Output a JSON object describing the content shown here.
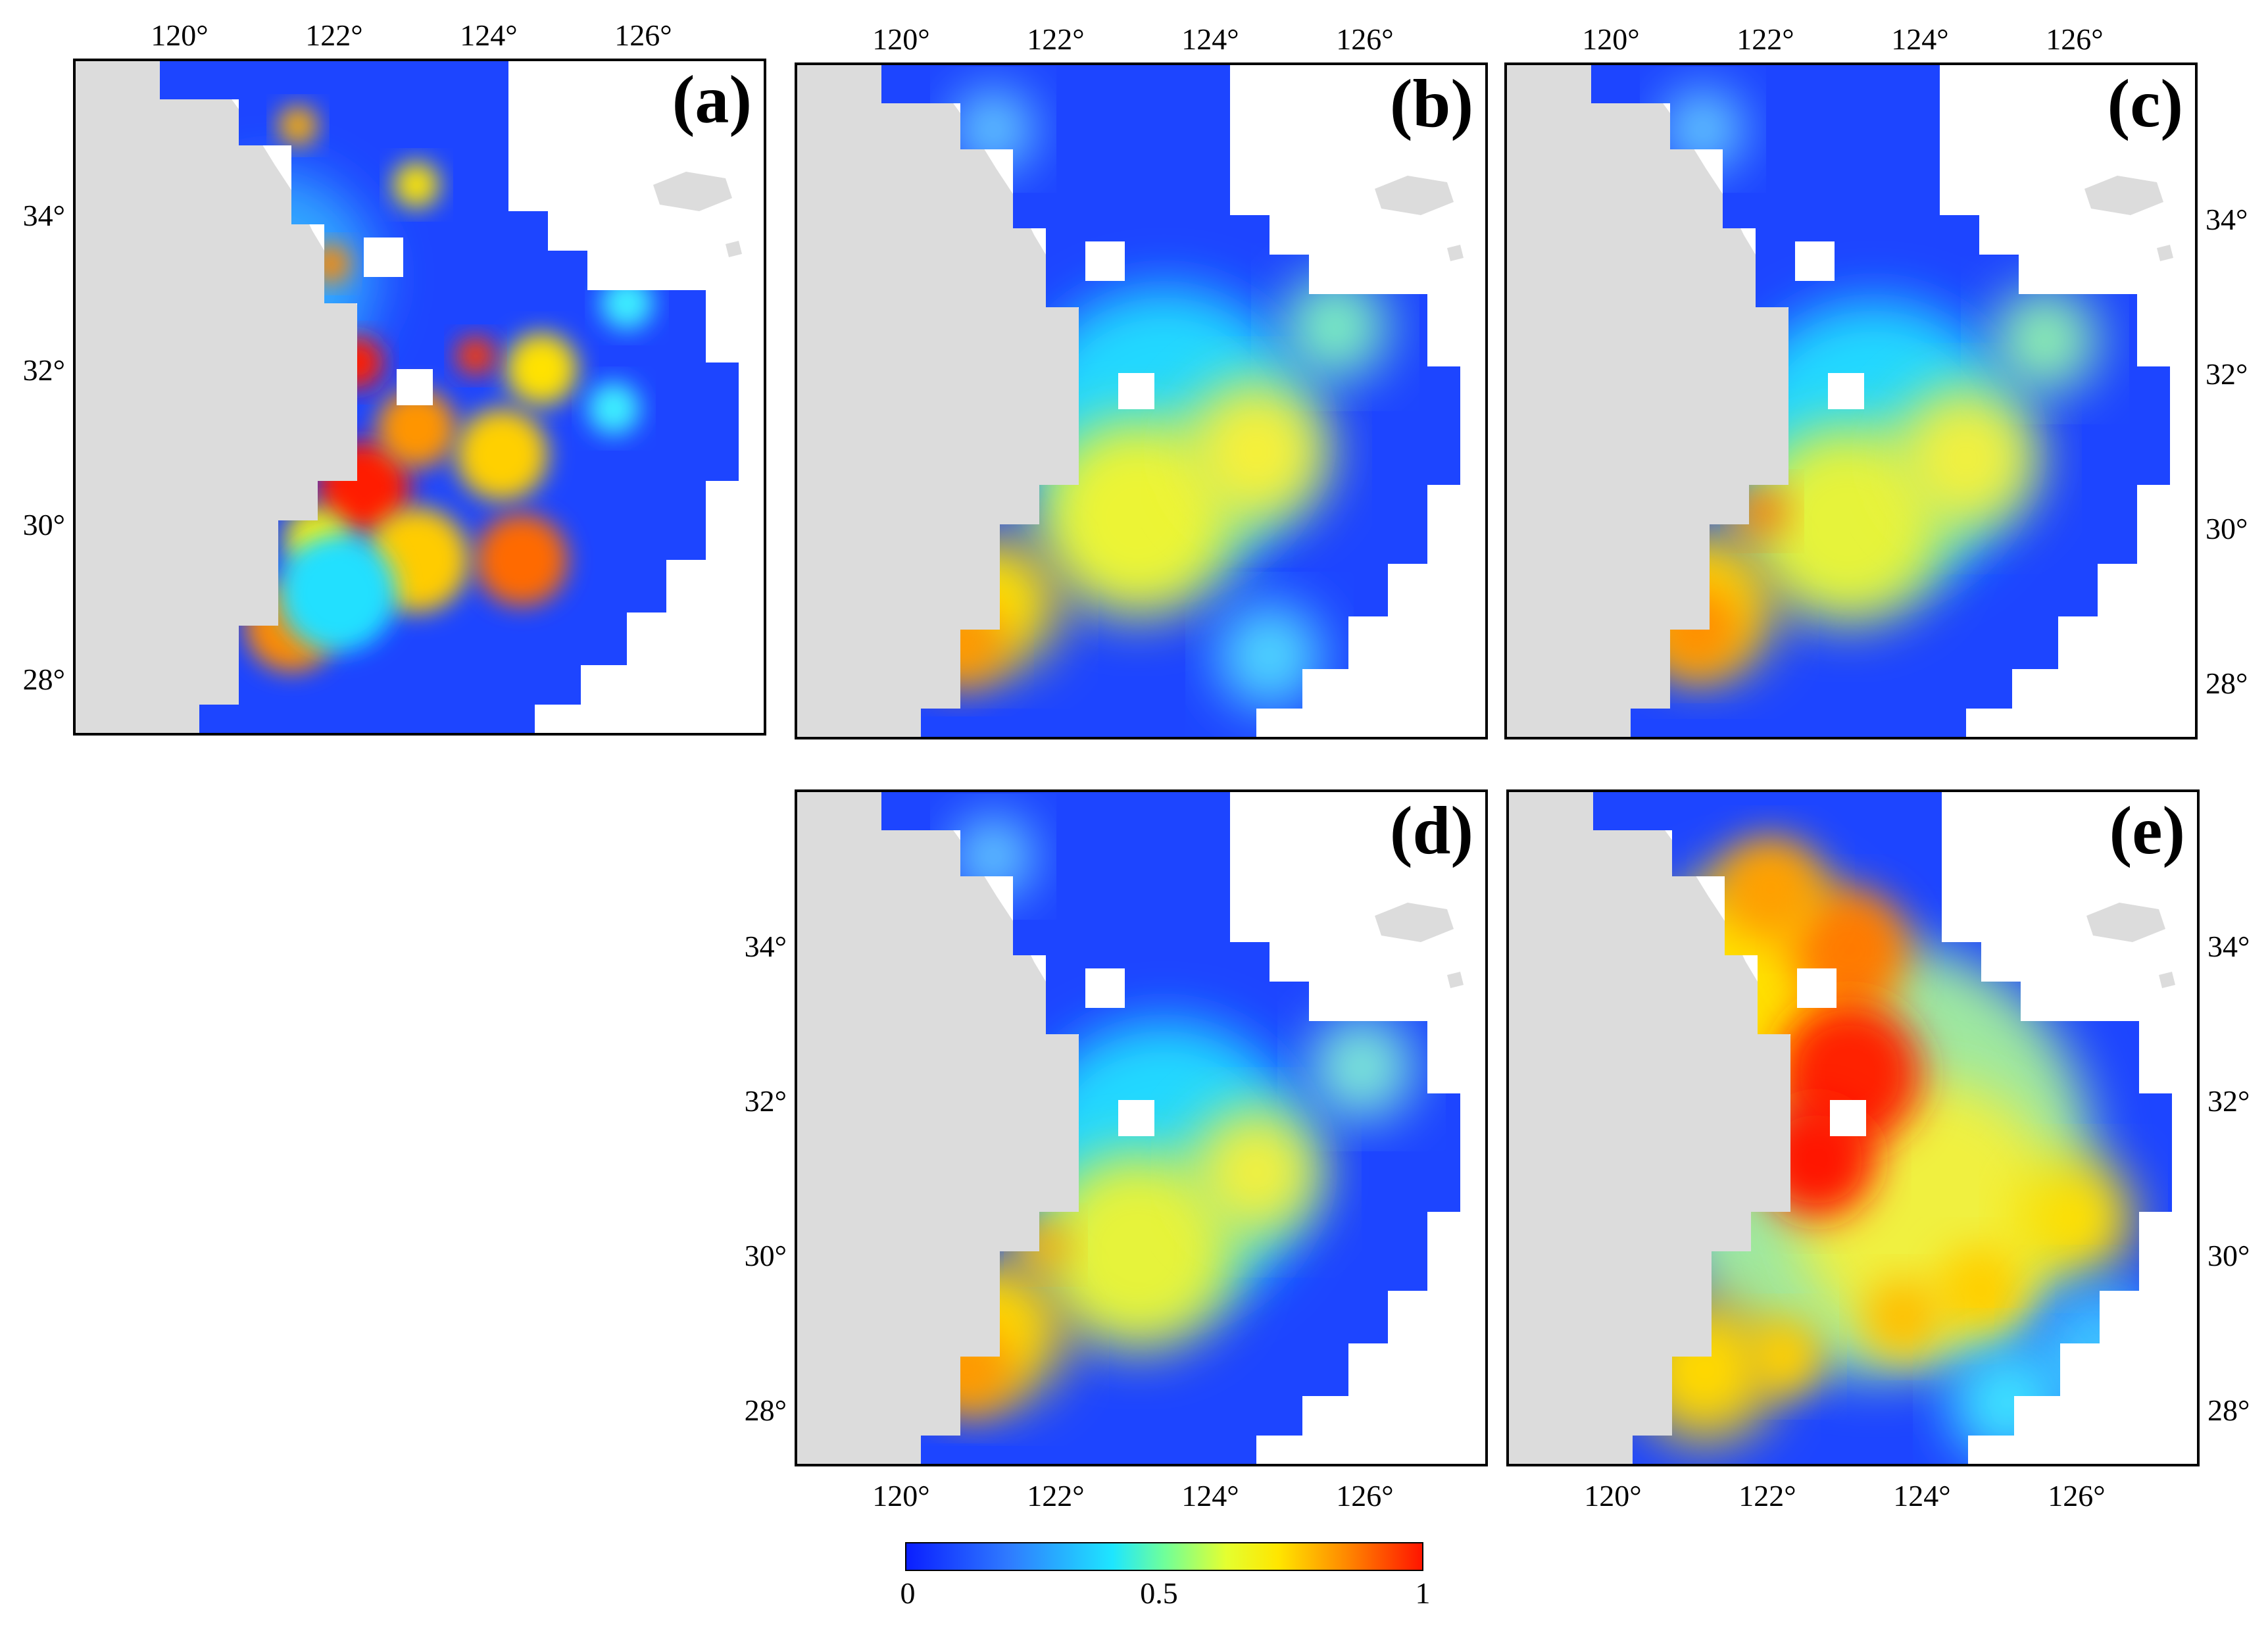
{
  "figure": {
    "panel_labels": [
      "(a)",
      "(b)",
      "(c)",
      "(d)",
      "(e)"
    ],
    "lon_ticks": [
      "120°",
      "122°",
      "124°",
      "126°"
    ],
    "lat_ticks": [
      "28°",
      "30°",
      "32°",
      "34°"
    ],
    "colorbar": {
      "tick_labels": [
        "0",
        "0.5",
        "1"
      ],
      "colors": [
        "#0a1eff",
        "#2f7bff",
        "#1ee6ff",
        "#c8ff3c",
        "#ffee00",
        "#ff9a00",
        "#ff1400"
      ]
    },
    "colors": {
      "land": "#dcdcdc",
      "sea_blank": "#ffffff",
      "frame": "#000000"
    }
  }
}
